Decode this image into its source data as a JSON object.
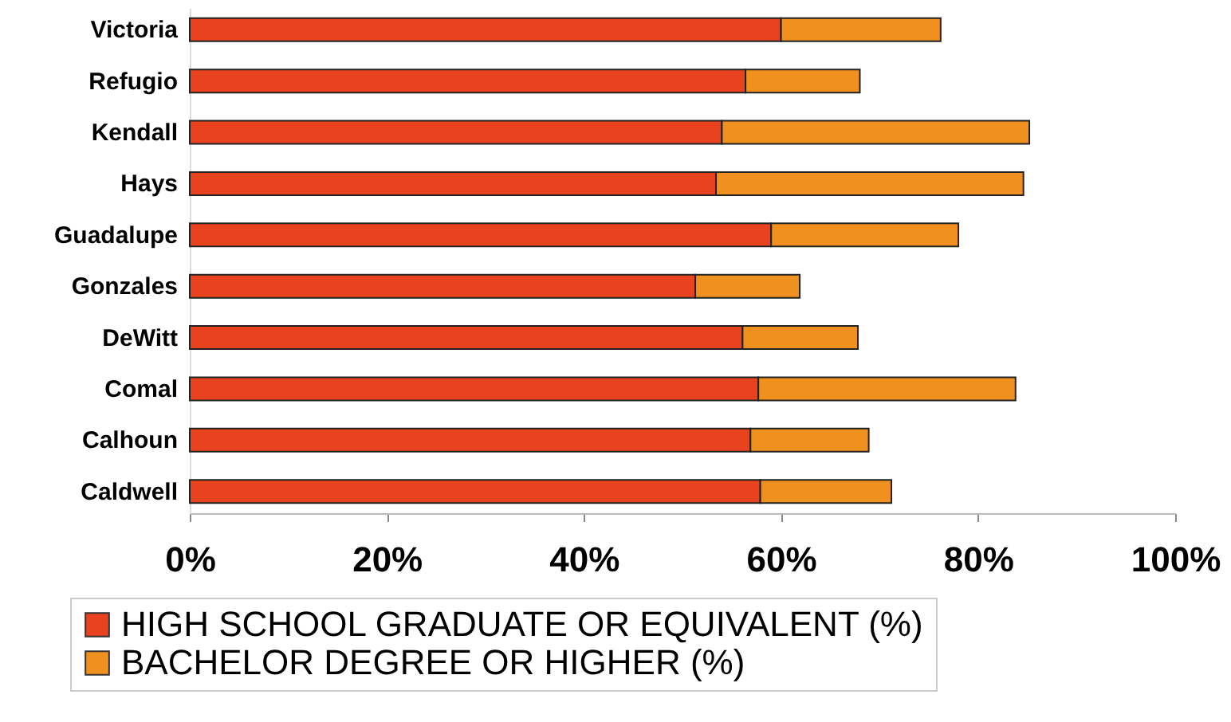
{
  "chart_data": {
    "type": "bar",
    "orientation": "horizontal",
    "stacked": true,
    "categories": [
      "Victoria",
      "Refugio",
      "Kendall",
      "Hays",
      "Guadalupe",
      "Gonzales",
      "DeWitt",
      "Comal",
      "Calhoun",
      "Caldwell"
    ],
    "series": [
      {
        "name": "HIGH SCHOOL GRADUATE OR EQUIVALENT (%)",
        "color": "#e8421e",
        "values": [
          60.0,
          56.4,
          54.0,
          53.4,
          59.0,
          51.3,
          56.1,
          57.7,
          56.9,
          57.9
        ]
      },
      {
        "name": "BACHELOR DEGREE OR HIGHER (%)",
        "color": "#f0901e",
        "values": [
          16.2,
          11.6,
          31.2,
          31.2,
          19.0,
          10.6,
          11.7,
          26.1,
          12.0,
          13.3
        ]
      }
    ],
    "xlim": [
      0,
      100
    ],
    "xticks": [
      {
        "value": 0,
        "label": "0%"
      },
      {
        "value": 20,
        "label": "20%"
      },
      {
        "value": 40,
        "label": "40%"
      },
      {
        "value": 60,
        "label": "60%"
      },
      {
        "value": 80,
        "label": "80%"
      },
      {
        "value": 100,
        "label": "100%"
      }
    ],
    "grid": false,
    "legend": "bottom"
  }
}
